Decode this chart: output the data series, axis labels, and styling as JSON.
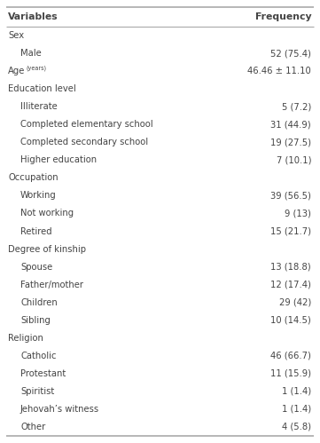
{
  "col_header": [
    "Variables",
    "Frequency"
  ],
  "rows": [
    {
      "label": "Sex",
      "value": "",
      "indent": 0,
      "category": true,
      "superscript": null
    },
    {
      "label": "Male",
      "value": "52 (75.4)",
      "indent": 1,
      "category": false,
      "superscript": null
    },
    {
      "label": "Age",
      "value": "46.46 ± 11.10",
      "indent": 0,
      "category": false,
      "superscript": "(years)"
    },
    {
      "label": "Education level",
      "value": "",
      "indent": 0,
      "category": true,
      "superscript": null
    },
    {
      "label": "Illiterate",
      "value": "5 (7.2)",
      "indent": 1,
      "category": false,
      "superscript": null
    },
    {
      "label": "Completed elementary school",
      "value": "31 (44.9)",
      "indent": 1,
      "category": false,
      "superscript": null
    },
    {
      "label": "Completed secondary school",
      "value": "19 (27.5)",
      "indent": 1,
      "category": false,
      "superscript": null
    },
    {
      "label": "Higher education",
      "value": "7 (10.1)",
      "indent": 1,
      "category": false,
      "superscript": null
    },
    {
      "label": "Occupation",
      "value": "",
      "indent": 0,
      "category": true,
      "superscript": null
    },
    {
      "label": "Working",
      "value": "39 (56.5)",
      "indent": 1,
      "category": false,
      "superscript": null
    },
    {
      "label": "Not working",
      "value": "9 (13)",
      "indent": 1,
      "category": false,
      "superscript": null
    },
    {
      "label": "Retired",
      "value": "15 (21.7)",
      "indent": 1,
      "category": false,
      "superscript": null
    },
    {
      "label": "Degree of kinship",
      "value": "",
      "indent": 0,
      "category": true,
      "superscript": null
    },
    {
      "label": "Spouse",
      "value": "13 (18.8)",
      "indent": 1,
      "category": false,
      "superscript": null
    },
    {
      "label": "Father/mother",
      "value": "12 (17.4)",
      "indent": 1,
      "category": false,
      "superscript": null
    },
    {
      "label": "Children",
      "value": "29 (42)",
      "indent": 1,
      "category": false,
      "superscript": null
    },
    {
      "label": "Sibling",
      "value": "10 (14.5)",
      "indent": 1,
      "category": false,
      "superscript": null
    },
    {
      "label": "Religion",
      "value": "",
      "indent": 0,
      "category": true,
      "superscript": null
    },
    {
      "label": "Catholic",
      "value": "46 (66.7)",
      "indent": 1,
      "category": false,
      "superscript": null
    },
    {
      "label": "Protestant",
      "value": "11 (15.9)",
      "indent": 1,
      "category": false,
      "superscript": null
    },
    {
      "label": "Spiritist",
      "value": "1 (1.4)",
      "indent": 1,
      "category": false,
      "superscript": null
    },
    {
      "label": "Jehovah’s witness",
      "value": "1 (1.4)",
      "indent": 1,
      "category": false,
      "superscript": null
    },
    {
      "label": "Other",
      "value": "4 (5.8)",
      "indent": 1,
      "category": false,
      "superscript": null
    }
  ],
  "bg_color": "#ffffff",
  "header_bg": "#ffffff",
  "text_color": "#444444",
  "border_color": "#aaaaaa",
  "font_size": 7.2,
  "header_font_size": 7.8,
  "fig_width": 3.61,
  "fig_height": 4.99,
  "dpi": 100
}
